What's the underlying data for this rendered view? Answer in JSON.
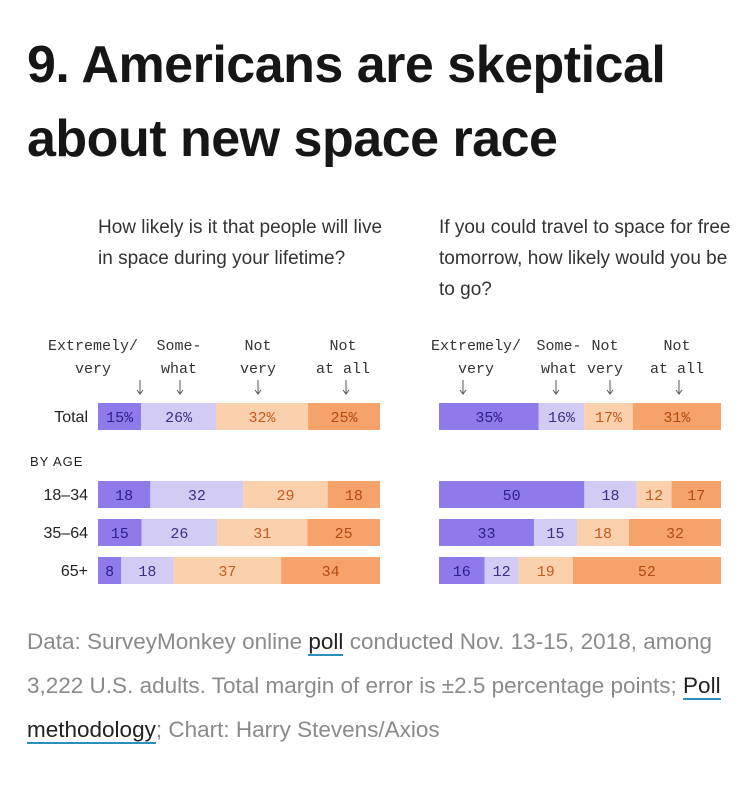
{
  "headline": "9. Americans are skeptical about new space race",
  "chart_data": [
    {
      "type": "bar",
      "stacked": true,
      "orientation": "horizontal",
      "title": "How likely is it that people will live in space during your lifetime?",
      "columns": [
        "Extremely/ very",
        "Some- what",
        "Not very",
        "Not at all"
      ],
      "total": {
        "label": "Total",
        "values": [
          15,
          26,
          32,
          25
        ],
        "labels": [
          "15%",
          "26%",
          "32%",
          "25%"
        ]
      },
      "section_label": "BY AGE",
      "rows": [
        {
          "label": "18–34",
          "values": [
            18,
            32,
            29,
            18
          ]
        },
        {
          "label": "35–64",
          "values": [
            15,
            26,
            31,
            25
          ]
        },
        {
          "label": "65+",
          "values": [
            8,
            18,
            37,
            34
          ]
        }
      ],
      "colors": [
        "#8e7ae8",
        "#d2ccf5",
        "#fbd1ad",
        "#f5a36a"
      ]
    },
    {
      "type": "bar",
      "stacked": true,
      "orientation": "horizontal",
      "title": "If you could travel to space for free tomorrow, how likely would you be to go?",
      "columns": [
        "Extremely/ very",
        "Some- what",
        "Not very",
        "Not at all"
      ],
      "total": {
        "label": "Total",
        "values": [
          35,
          16,
          17,
          31
        ],
        "labels": [
          "35%",
          "16%",
          "17%",
          "31%"
        ]
      },
      "section_label": "BY AGE",
      "rows": [
        {
          "label": "18–34",
          "values": [
            50,
            18,
            12,
            17
          ]
        },
        {
          "label": "35–64",
          "values": [
            33,
            15,
            18,
            32
          ]
        },
        {
          "label": "65+",
          "values": [
            16,
            12,
            19,
            52
          ]
        }
      ],
      "colors": [
        "#8e7ae8",
        "#d2ccf5",
        "#fbd1ad",
        "#f5a36a"
      ]
    }
  ],
  "footer": {
    "part1": "Data: SurveyMonkey online ",
    "link1": "poll",
    "part2": " conducted Nov. 13-15, 2018, among 3,222 U.S. adults. Total margin of error is ±2.5 percentage points; ",
    "link2": "Poll methodology",
    "part3": "; Chart: Harry Stevens/Axios"
  }
}
